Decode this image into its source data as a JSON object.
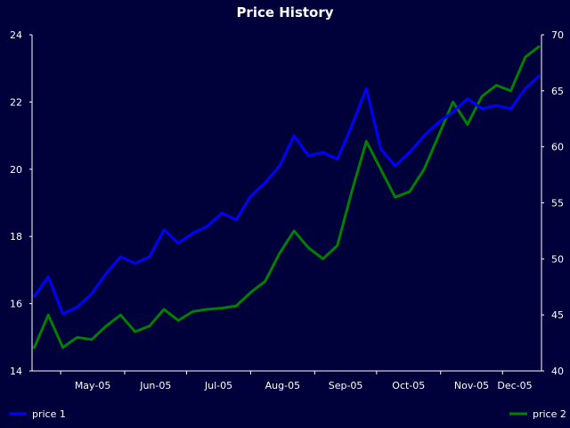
{
  "chart_data": {
    "type": "line",
    "title": "Price History",
    "background": "#00003a",
    "grid": false,
    "legend_position": "bottom",
    "x_ticks": [
      "May-05",
      "Jun-05",
      "Jul-05",
      "Aug-05",
      "Sep-05",
      "Oct-05",
      "Nov-05",
      "Dec-05"
    ],
    "y_left": {
      "range": [
        14,
        24
      ],
      "ticks": [
        "14",
        "16",
        "18",
        "20",
        "22",
        "24"
      ]
    },
    "y_right": {
      "range": [
        40,
        70
      ],
      "ticks": [
        "40",
        "45",
        "50",
        "55",
        "60",
        "65",
        "70"
      ]
    },
    "x": [
      "2005-04-18",
      "2005-04-25",
      "2005-05-02",
      "2005-05-09",
      "2005-05-16",
      "2005-05-23",
      "2005-05-30",
      "2005-06-06",
      "2005-06-13",
      "2005-06-20",
      "2005-06-27",
      "2005-07-04",
      "2005-07-11",
      "2005-07-18",
      "2005-07-25",
      "2005-08-01",
      "2005-08-08",
      "2005-08-15",
      "2005-08-22",
      "2005-08-29",
      "2005-09-05",
      "2005-09-12",
      "2005-09-19",
      "2005-09-26",
      "2005-10-03",
      "2005-10-10",
      "2005-10-17",
      "2005-10-24",
      "2005-10-31",
      "2005-11-07",
      "2005-11-14",
      "2005-11-21",
      "2005-11-28",
      "2005-12-05",
      "2005-12-12",
      "2005-12-19"
    ],
    "series": [
      {
        "name": "price 1",
        "axis": "left",
        "color": "#0000ff",
        "values": [
          16.2,
          16.8,
          15.7,
          15.9,
          16.3,
          16.9,
          17.4,
          17.2,
          17.4,
          18.2,
          17.8,
          18.1,
          18.3,
          18.7,
          18.5,
          19.2,
          19.6,
          20.1,
          21.0,
          20.4,
          20.5,
          20.3,
          21.3,
          22.4,
          20.6,
          20.1,
          20.5,
          21.0,
          21.4,
          21.7,
          22.1,
          21.8,
          21.9,
          21.8,
          22.4,
          22.8
        ]
      },
      {
        "name": "price 2",
        "axis": "right",
        "color": "#008000",
        "values": [
          42.0,
          45.0,
          42.1,
          43.0,
          42.8,
          44.0,
          45.0,
          43.5,
          44.0,
          45.5,
          44.5,
          45.3,
          45.5,
          45.6,
          45.8,
          47.0,
          48.0,
          50.5,
          52.5,
          51.0,
          50.0,
          51.2,
          56.0,
          60.5,
          58.0,
          55.5,
          56.0,
          58.0,
          61.0,
          64.0,
          62.0,
          64.5,
          65.5,
          65.0,
          68.0,
          69.0
        ]
      }
    ]
  }
}
